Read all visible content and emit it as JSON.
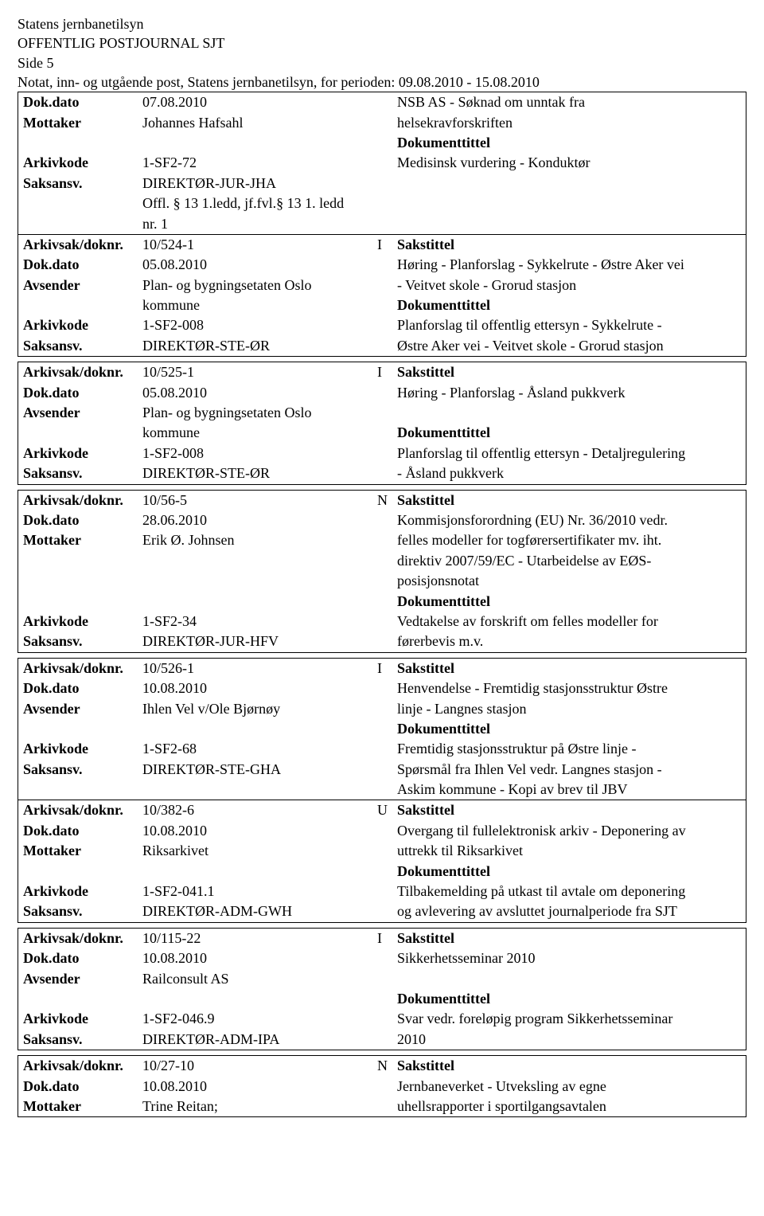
{
  "header": {
    "org": "Statens jernbanetilsyn",
    "title": "OFFENTLIG POSTJOURNAL SJT",
    "side": "Side 5",
    "periodline": "Notat, inn- og utgående post, Statens jernbanetilsyn, for perioden: 09.08.2010 - 15.08.2010"
  },
  "labels": {
    "arkivsak": "Arkivsak/doknr.",
    "dokdato": "Dok.dato",
    "mottaker": "Mottaker",
    "avsender": "Avsender",
    "arkivkode": "Arkivkode",
    "saksansv": "Saksansv.",
    "sakstittel": "Sakstittel",
    "dokumenttittel": "Dokumenttittel"
  },
  "entries": [
    {
      "firstHasArkivsak": false,
      "dokdato": "07.08.2010",
      "party_label": "Mottaker",
      "party": "Johannes Hafsahl",
      "arkivkode": "1-SF2-72",
      "saksansv": "DIREKTØR-JUR-JHA",
      "extra_lines": [
        "Offl. § 13 1.ledd, jf.fvl.§ 13 1. ledd",
        "nr. 1"
      ],
      "sakstittel_lines": [
        "NSB AS - Søknad om unntak fra",
        "helsekravforskriften"
      ],
      "dokumenttittel_lines": [
        "Medisinsk vurdering - Konduktør"
      ],
      "flag": ""
    },
    {
      "arkivsak": "10/524-1",
      "flag": "I",
      "dokdato": "05.08.2010",
      "party_label": "Avsender",
      "party": "Plan- og bygningsetaten Oslo",
      "party_line2": "kommune",
      "arkivkode": "1-SF2-008",
      "saksansv": "DIREKTØR-STE-ØR",
      "sakstittel_lines": [
        "Høring - Planforslag - Sykkelrute - Østre Aker vei",
        "- Veitvet skole - Grorud stasjon"
      ],
      "dokumenttittel_lines": [
        "Planforslag til offentlig ettersyn - Sykkelrute -",
        "Østre Aker vei - Veitvet skole - Grorud stasjon"
      ]
    },
    {
      "arkivsak": "10/525-1",
      "flag": "I",
      "dokdato": "05.08.2010",
      "party_label": "Avsender",
      "party": "Plan- og bygningsetaten Oslo",
      "party_line2": "kommune",
      "arkivkode": "1-SF2-008",
      "saksansv": "DIREKTØR-STE-ØR",
      "sakstittel_lines": [
        "Høring - Planforslag - Åsland pukkverk",
        ""
      ],
      "dokumenttittel_lines": [
        "Planforslag til offentlig ettersyn - Detaljregulering",
        "- Åsland pukkverk"
      ]
    },
    {
      "arkivsak": "10/56-5",
      "flag": "N",
      "dokdato": "28.06.2010",
      "party_label": "Mottaker",
      "party": "Erik Ø. Johnsen",
      "arkivkode": "1-SF2-34",
      "saksansv": "DIREKTØR-JUR-HFV",
      "sakstittel_lines": [
        "Kommisjonsforordning (EU) Nr. 36/2010 vedr.",
        "felles modeller for togførersertifikater mv. iht.",
        "direktiv 2007/59/EC - Utarbeidelse av EØS-",
        "posisjonsnotat"
      ],
      "dokumenttittel_lines": [
        "Vedtakelse av forskrift om felles modeller for",
        "førerbevis m.v."
      ]
    },
    {
      "arkivsak": "10/526-1",
      "flag": "I",
      "dokdato": "10.08.2010",
      "party_label": "Avsender",
      "party": "Ihlen Vel v/Ole Bjørnøy",
      "arkivkode": "1-SF2-68",
      "saksansv": "DIREKTØR-STE-GHA",
      "sakstittel_lines": [
        "Henvendelse - Fremtidig stasjonsstruktur Østre",
        "linje - Langnes stasjon"
      ],
      "dokumenttittel_lines": [
        "Fremtidig stasjonsstruktur på Østre linje -",
        "Spørsmål fra Ihlen Vel vedr. Langnes stasjon -",
        "Askim kommune - Kopi av brev til JBV"
      ]
    },
    {
      "arkivsak": "10/382-6",
      "flag": "U",
      "dokdato": "10.08.2010",
      "party_label": "Mottaker",
      "party": "Riksarkivet",
      "arkivkode": "1-SF2-041.1",
      "saksansv": "DIREKTØR-ADM-GWH",
      "sakstittel_lines": [
        "Overgang til fullelektronisk arkiv - Deponering av",
        "uttrekk til Riksarkivet"
      ],
      "dokumenttittel_lines": [
        "Tilbakemelding på utkast til avtale om deponering",
        "og avlevering av avsluttet journalperiode fra SJT"
      ]
    },
    {
      "arkivsak": "10/115-22",
      "flag": "I",
      "dokdato": "10.08.2010",
      "party_label": "Avsender",
      "party": "Railconsult AS",
      "arkivkode": "1-SF2-046.9",
      "saksansv": "DIREKTØR-ADM-IPA",
      "sakstittel_lines": [
        "Sikkerhetsseminar 2010",
        ""
      ],
      "dokumenttittel_lines": [
        "Svar vedr. foreløpig program Sikkerhetsseminar",
        "2010"
      ]
    },
    {
      "arkivsak": "10/27-10",
      "flag": "N",
      "dokdato": "10.08.2010",
      "party_label": "Mottaker",
      "party": "Trine Reitan;",
      "arkivkode": "",
      "saksansv": "",
      "sakstittel_lines": [
        "Jernbaneverket - Utveksling av egne",
        "uhellsrapporter i sportilgangsavtalen"
      ],
      "dokumenttittel_lines": [],
      "truncated": true
    }
  ]
}
